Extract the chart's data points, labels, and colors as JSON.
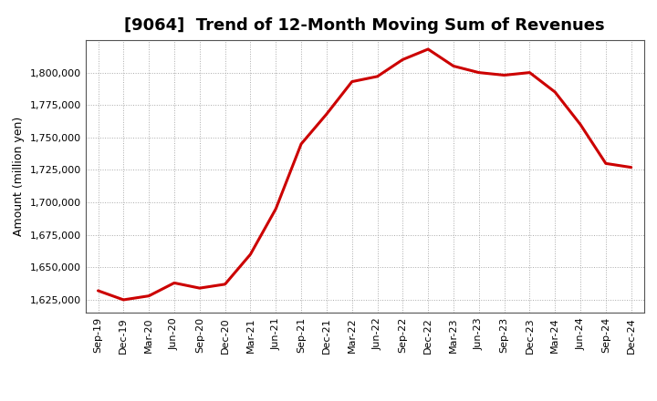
{
  "title": "[9064]  Trend of 12-Month Moving Sum of Revenues",
  "ylabel": "Amount (million yen)",
  "line_color": "#cc0000",
  "background_color": "#ffffff",
  "plot_bg_color": "#ffffff",
  "grid_color": "#aaaaaa",
  "x_labels": [
    "Sep-19",
    "Dec-19",
    "Mar-20",
    "Jun-20",
    "Sep-20",
    "Dec-20",
    "Mar-21",
    "Jun-21",
    "Sep-21",
    "Dec-21",
    "Mar-22",
    "Jun-22",
    "Sep-22",
    "Dec-22",
    "Mar-23",
    "Jun-23",
    "Sep-23",
    "Dec-23",
    "Mar-24",
    "Jun-24",
    "Sep-24",
    "Dec-24"
  ],
  "values": [
    1632000,
    1625000,
    1628000,
    1638000,
    1634000,
    1637000,
    1660000,
    1695000,
    1745000,
    1768000,
    1793000,
    1797000,
    1810000,
    1818000,
    1805000,
    1800000,
    1798000,
    1800000,
    1785000,
    1760000,
    1730000,
    1727000
  ],
  "ylim_min": 1615000,
  "ylim_max": 1825000,
  "yticks": [
    1625000,
    1650000,
    1675000,
    1700000,
    1725000,
    1750000,
    1775000,
    1800000
  ],
  "line_width": 2.2,
  "title_fontsize": 13,
  "label_fontsize": 9,
  "tick_fontsize": 8
}
